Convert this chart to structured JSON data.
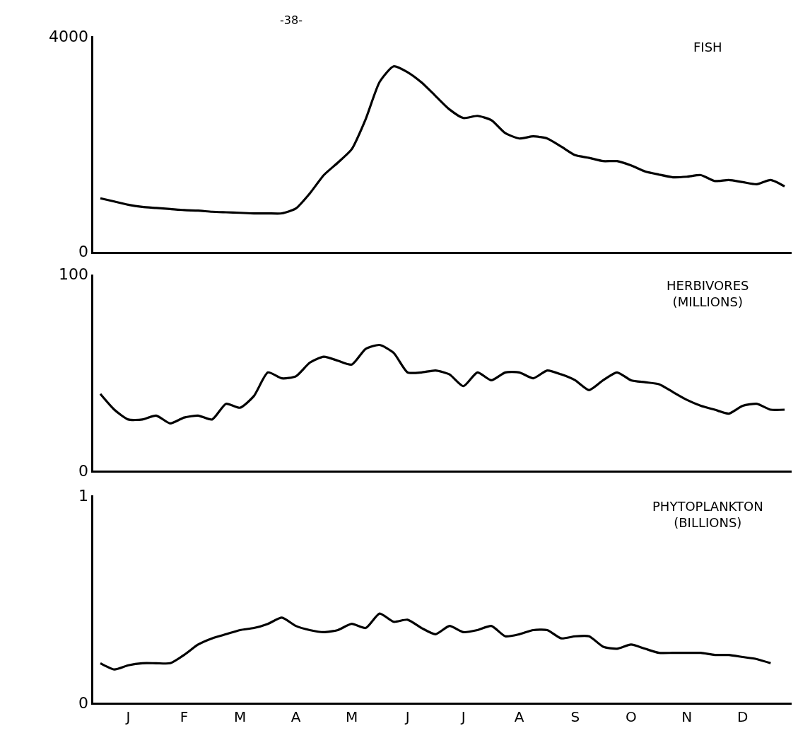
{
  "chart_data": [
    {
      "type": "line",
      "title": "FISH",
      "annotations": [
        "-38-"
      ],
      "ylim": [
        0,
        4000
      ],
      "yticks": [
        0,
        4000
      ],
      "tick_labels": "y",
      "categories": [
        null,
        null,
        null,
        null,
        null,
        null,
        null,
        null,
        null,
        null,
        null,
        null,
        null,
        null,
        null,
        null,
        null,
        null,
        null,
        null,
        null,
        null,
        null,
        null,
        null,
        null,
        null,
        null,
        null,
        null,
        null,
        null,
        null,
        null,
        null,
        null,
        null,
        null,
        null,
        null,
        null,
        null,
        null,
        null,
        null,
        null,
        null,
        null,
        null,
        null
      ],
      "series": [
        {
          "color": "#000000",
          "values": [
            990,
            930,
            870,
            830,
            810,
            790,
            770,
            760,
            740,
            730,
            720,
            710,
            710,
            710,
            800,
            1080,
            1420,
            1650,
            1900,
            2460,
            3150,
            3440,
            3330,
            3140,
            2890,
            2640,
            2480,
            2520,
            2440,
            2200,
            2100,
            2140,
            2100,
            1950,
            1790,
            1740,
            1680,
            1680,
            1600,
            1490,
            1430,
            1380,
            1390,
            1420,
            1310,
            1330,
            1290,
            1250,
            1330,
            1210
          ]
        }
      ]
    },
    {
      "type": "line",
      "title": "HERBIVORES\n(MILLIONS)",
      "ylim": [
        0,
        100
      ],
      "yticks": [
        0,
        100
      ],
      "tick_labels": "y",
      "categories": [
        null,
        null,
        null,
        null,
        null,
        null,
        null,
        null,
        null,
        null,
        null,
        null,
        null,
        null,
        null,
        null,
        null,
        null,
        null,
        null,
        null,
        null,
        null,
        null,
        null,
        null,
        null,
        null,
        null,
        null,
        null,
        null,
        null,
        null,
        null,
        null,
        null,
        null,
        null,
        null,
        null,
        null,
        null,
        null,
        null,
        null,
        null,
        null,
        null,
        null
      ],
      "series": [
        {
          "color": "#000000",
          "values": [
            39,
            31,
            26,
            26,
            28,
            24,
            27,
            28,
            26,
            34,
            32,
            38,
            50,
            47,
            48,
            55,
            58,
            56,
            54,
            62,
            64,
            60,
            50,
            50,
            51,
            49,
            43,
            50,
            46,
            50,
            50,
            47,
            51,
            49,
            46,
            41,
            46,
            50,
            46,
            45,
            44,
            40,
            36,
            33,
            31,
            29,
            33,
            34,
            31,
            31
          ]
        }
      ]
    },
    {
      "type": "line",
      "title": "PHYTOPLANKTON\n(BILLIONS)",
      "ylim": [
        0,
        1
      ],
      "yticks": [
        0,
        1
      ],
      "categories": [
        null,
        null,
        "J",
        null,
        null,
        null,
        "F",
        null,
        null,
        null,
        "M",
        null,
        null,
        null,
        "A",
        null,
        null,
        null,
        "M",
        null,
        null,
        null,
        "J",
        null,
        null,
        null,
        "J",
        null,
        null,
        null,
        "A",
        null,
        null,
        null,
        "S",
        null,
        null,
        null,
        "O",
        null,
        null,
        null,
        "N",
        null,
        null,
        null,
        "D",
        null,
        null,
        null
      ],
      "series": [
        {
          "color": "#000000",
          "values": [
            0.19,
            0.16,
            0.18,
            0.19,
            0.19,
            0.19,
            0.23,
            0.28,
            0.31,
            0.33,
            0.35,
            0.36,
            0.38,
            0.41,
            0.37,
            0.35,
            0.34,
            0.35,
            0.38,
            0.36,
            0.43,
            0.39,
            0.4,
            0.36,
            0.33,
            0.37,
            0.34,
            0.35,
            0.37,
            0.32,
            0.33,
            0.35,
            0.35,
            0.31,
            0.32,
            0.32,
            0.27,
            0.26,
            0.28,
            0.26,
            0.24,
            0.24,
            0.24,
            0.24,
            0.23,
            0.23,
            0.22,
            0.21,
            0.19,
            null
          ]
        }
      ]
    }
  ]
}
